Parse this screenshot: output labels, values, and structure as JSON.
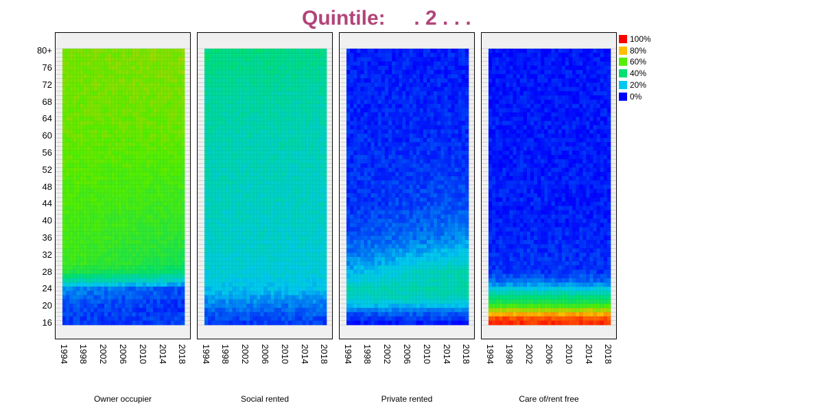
{
  "title": "Quintile:     . 2 . . .",
  "chart_data": {
    "type": "heatmap",
    "x_ticks": [
      "1994",
      "1998",
      "2002",
      "2006",
      "2010",
      "2014",
      "2018"
    ],
    "y_ticks": [
      "80+",
      "76",
      "72",
      "68",
      "64",
      "60",
      "56",
      "52",
      "48",
      "44",
      "40",
      "36",
      "32",
      "28",
      "24",
      "20",
      "16"
    ],
    "x_range": [
      1994,
      2018
    ],
    "y_range": [
      16,
      80
    ],
    "color_scale": [
      {
        "label": "100%",
        "color": "#ff0000"
      },
      {
        "label": "80%",
        "color": "#ffbf00"
      },
      {
        "label": "60%",
        "color": "#55ee00"
      },
      {
        "label": "40%",
        "color": "#00e070"
      },
      {
        "label": "20%",
        "color": "#00c8f0"
      },
      {
        "label": "0%",
        "color": "#0000ff"
      }
    ],
    "panels": [
      {
        "label": "Owner occupier",
        "profile": [
          [
            16,
            0.06
          ],
          [
            20,
            0.08
          ],
          [
            24,
            0.14
          ],
          [
            26,
            0.32
          ],
          [
            28,
            0.48
          ],
          [
            30,
            0.55
          ],
          [
            36,
            0.56
          ],
          [
            44,
            0.58
          ],
          [
            52,
            0.6
          ],
          [
            60,
            0.62
          ],
          [
            68,
            0.63
          ],
          [
            80,
            0.64
          ]
        ],
        "trend": [
          [
            16,
            0
          ],
          [
            24,
            -0.06
          ],
          [
            30,
            -0.1
          ],
          [
            36,
            -0.06
          ],
          [
            44,
            -0.04
          ],
          [
            60,
            0
          ],
          [
            80,
            0.02
          ]
        ]
      },
      {
        "label": "Social rented",
        "profile": [
          [
            16,
            0.06
          ],
          [
            20,
            0.12
          ],
          [
            24,
            0.2
          ],
          [
            28,
            0.24
          ],
          [
            36,
            0.26
          ],
          [
            48,
            0.28
          ],
          [
            60,
            0.3
          ],
          [
            70,
            0.33
          ],
          [
            80,
            0.38
          ]
        ],
        "trend": [
          [
            16,
            0
          ],
          [
            80,
            -0.02
          ]
        ]
      },
      {
        "label": "Private rented",
        "profile": [
          [
            16,
            0.03
          ],
          [
            18,
            0.08
          ],
          [
            20,
            0.18
          ],
          [
            22,
            0.26
          ],
          [
            24,
            0.28
          ],
          [
            26,
            0.22
          ],
          [
            30,
            0.14
          ],
          [
            36,
            0.08
          ],
          [
            44,
            0.05
          ],
          [
            60,
            0.04
          ],
          [
            80,
            0.03
          ]
        ],
        "trend": [
          [
            16,
            0
          ],
          [
            24,
            0.04
          ],
          [
            28,
            0.14
          ],
          [
            32,
            0.1
          ],
          [
            36,
            0.06
          ],
          [
            44,
            0.03
          ],
          [
            60,
            0
          ],
          [
            80,
            0
          ]
        ]
      },
      {
        "label": "Care of/rent free",
        "profile": [
          [
            16,
            0.95
          ],
          [
            17,
            0.92
          ],
          [
            18,
            0.82
          ],
          [
            19,
            0.7
          ],
          [
            20,
            0.55
          ],
          [
            21,
            0.45
          ],
          [
            22,
            0.38
          ],
          [
            23,
            0.3
          ],
          [
            24,
            0.22
          ],
          [
            25,
            0.15
          ],
          [
            26,
            0.1
          ],
          [
            28,
            0.05
          ],
          [
            40,
            0.03
          ],
          [
            80,
            0.02
          ]
        ],
        "trend": [
          [
            16,
            0
          ],
          [
            80,
            0
          ]
        ]
      }
    ]
  }
}
